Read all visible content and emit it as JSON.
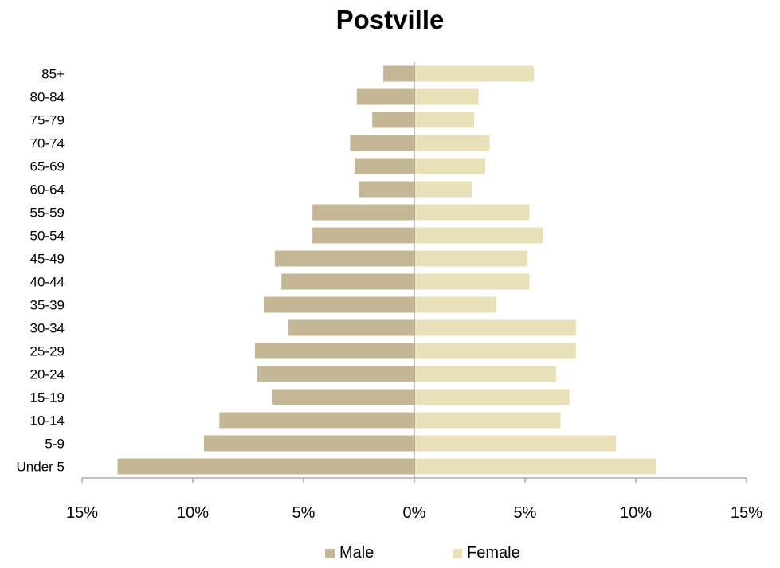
{
  "chart_data": {
    "type": "bar",
    "orientation": "horizontal",
    "layout": "population-pyramid",
    "title": "Postville",
    "categories": [
      "85+",
      "80-84",
      "75-79",
      "70-74",
      "65-69",
      "60-64",
      "55-59",
      "50-54",
      "45-49",
      "40-44",
      "35-39",
      "30-34",
      "25-29",
      "20-24",
      "15-19",
      "10-14",
      "5-9",
      "Under 5"
    ],
    "series": [
      {
        "name": "Male",
        "color": "#c4b796",
        "values": [
          1.4,
          2.6,
          1.9,
          2.9,
          2.7,
          2.5,
          4.6,
          4.6,
          6.3,
          6.0,
          6.8,
          5.7,
          7.2,
          7.1,
          6.4,
          8.8,
          9.5,
          13.4
        ]
      },
      {
        "name": "Female",
        "color": "#e8e0b8",
        "values": [
          5.4,
          2.9,
          2.7,
          3.4,
          3.2,
          2.6,
          5.2,
          5.8,
          5.1,
          5.2,
          3.7,
          7.3,
          7.3,
          6.4,
          7.0,
          6.6,
          9.1,
          10.9
        ]
      }
    ],
    "xlim": [
      -15,
      15
    ],
    "xticks": [
      -15,
      -10,
      -5,
      0,
      5,
      10,
      15
    ],
    "xtick_labels": [
      "15%",
      "10%",
      "5%",
      "0%",
      "5%",
      "10%",
      "15%"
    ],
    "xlabel": "",
    "ylabel": "",
    "grid": false,
    "legend_position": "bottom"
  }
}
